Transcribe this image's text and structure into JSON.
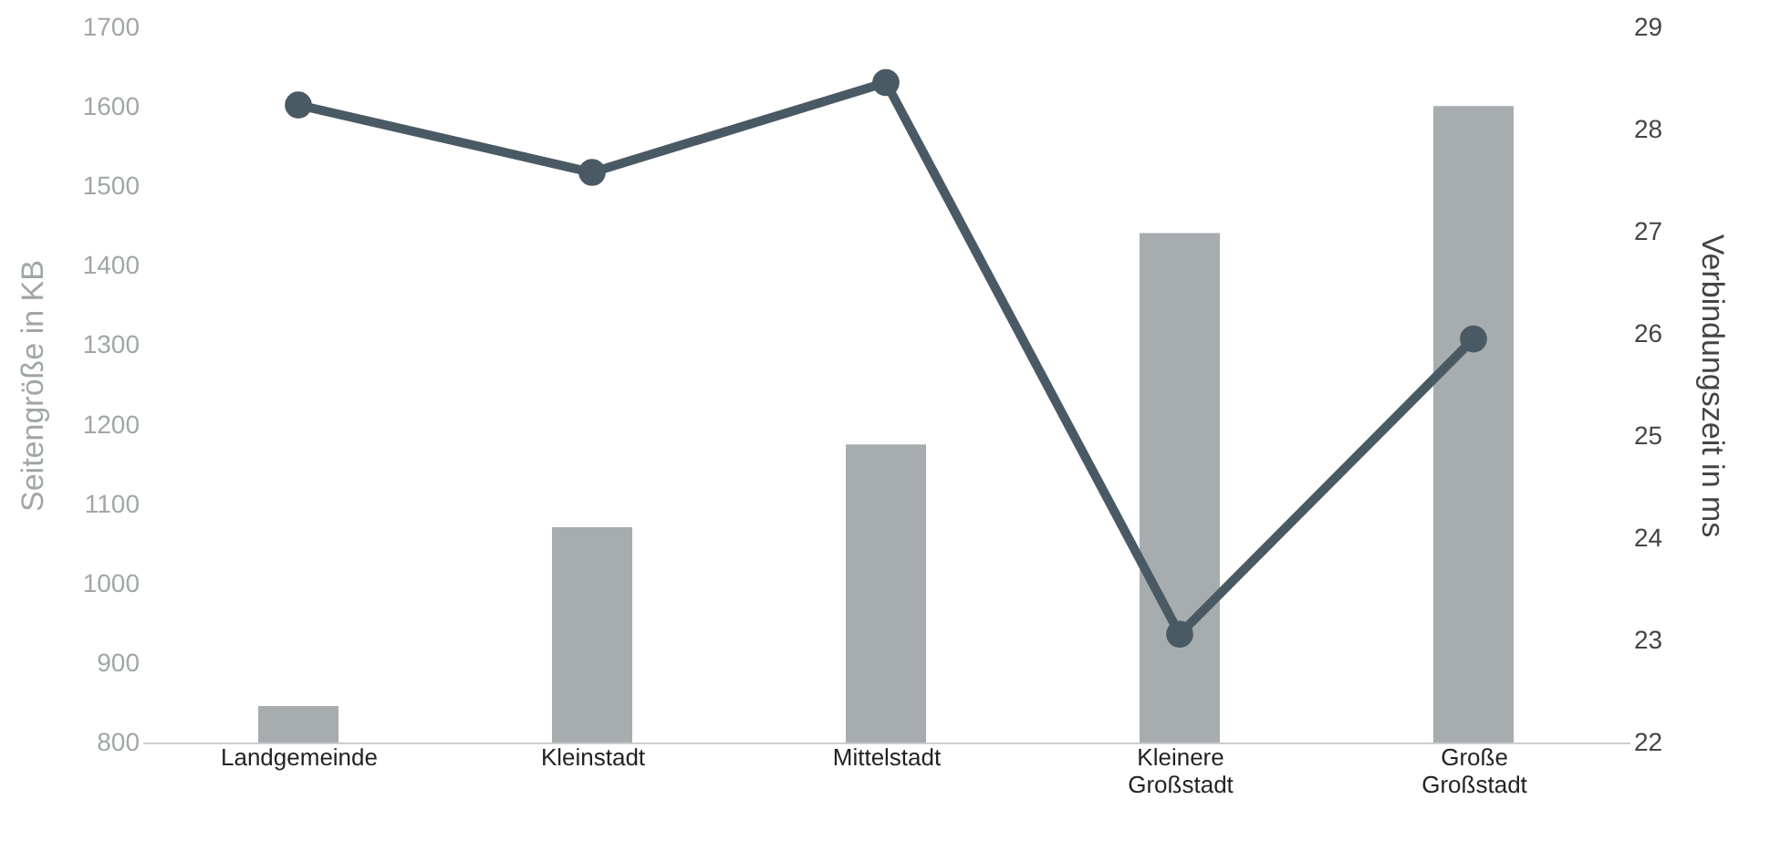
{
  "chart_data": {
    "type": "bar",
    "categories": [
      "Landgemeinde",
      "Kleinstadt",
      "Mittelstadt",
      "Kleinere Großstadt",
      "Große Großstadt"
    ],
    "ylabel": "Seitengröße in KB",
    "y2label": "Verbindungszeit in ms",
    "series": [
      {
        "color": "#a7adaf",
        "values": [
          846,
          1071,
          1175,
          1441,
          1601
        ]
      },
      {
        "type": "line",
        "axis": "y2",
        "color": "#4a5a64",
        "marker": "circle",
        "values": [
          28.24,
          27.58,
          28.46,
          23.06,
          25.95
        ]
      }
    ],
    "ylim": [
      800,
      1700
    ],
    "yticks": [
      800,
      900,
      1000,
      1100,
      1200,
      1300,
      1400,
      1500,
      1600,
      1700
    ],
    "y2lim": [
      22,
      29
    ],
    "y2ticks": [
      22,
      23,
      24,
      25,
      26,
      27,
      28,
      29
    ],
    "grid": false
  }
}
